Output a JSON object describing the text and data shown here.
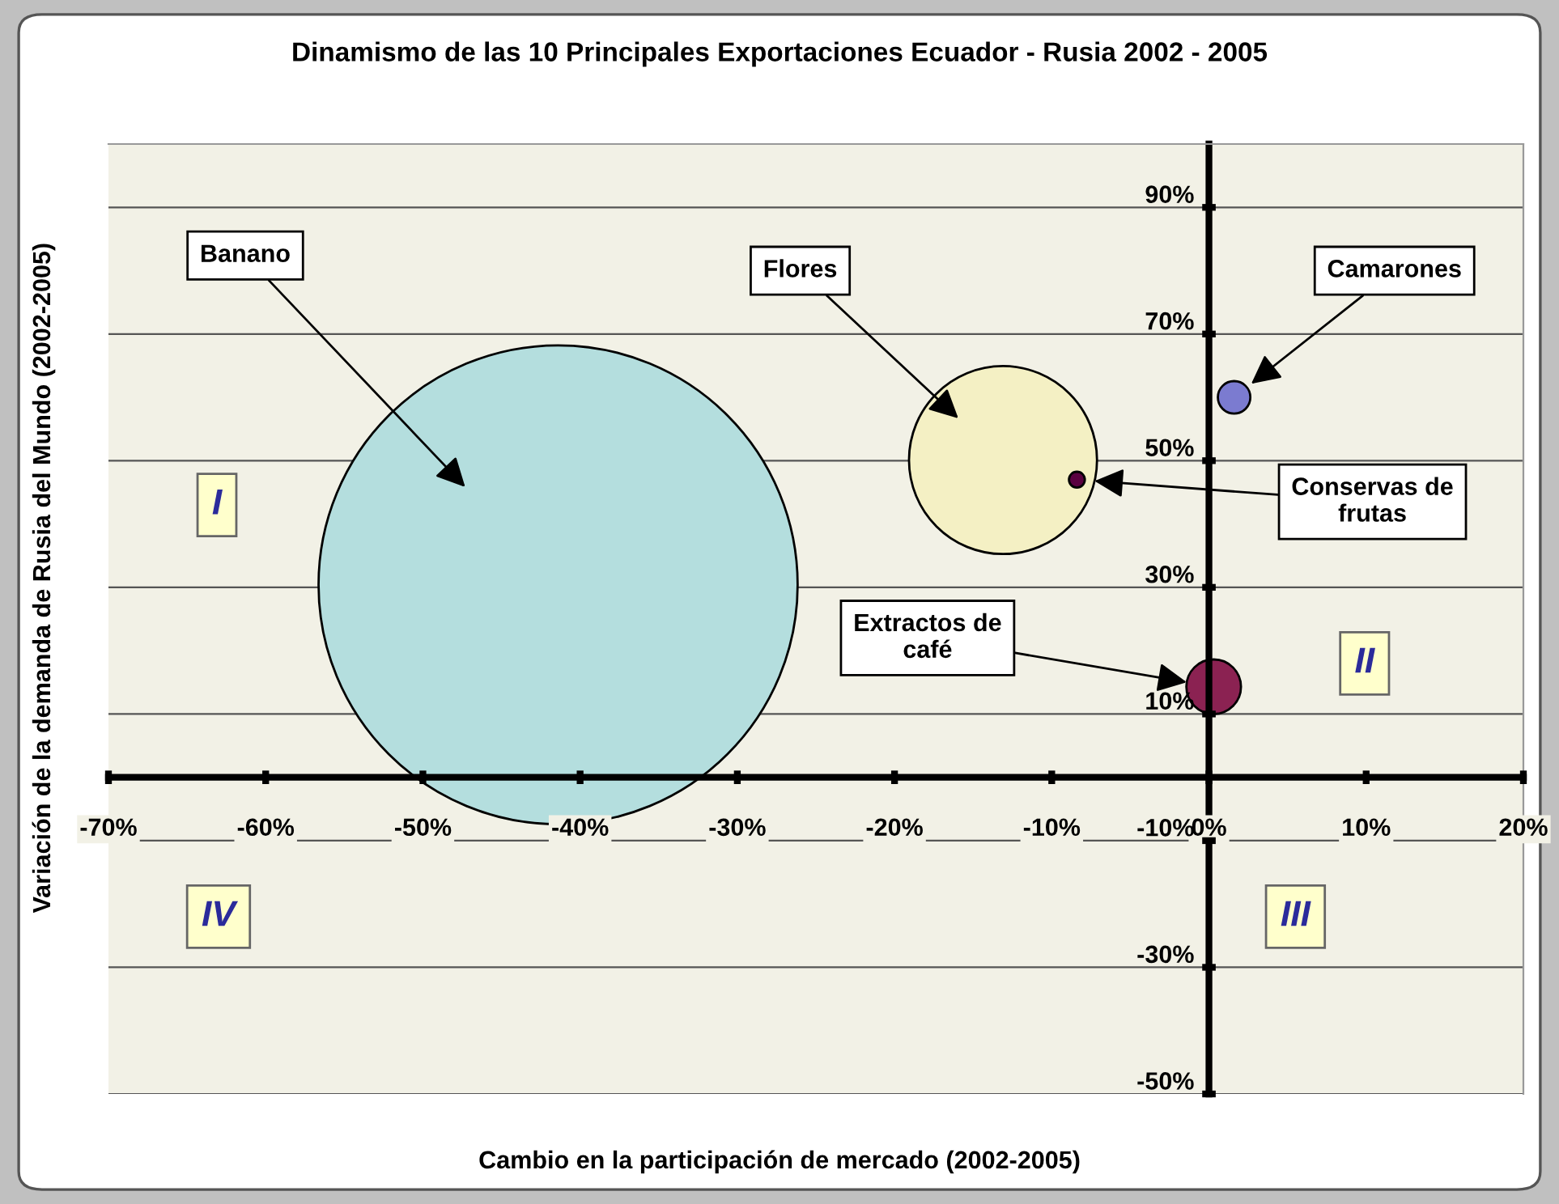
{
  "chart_data": {
    "type": "bubble",
    "title": "Dinamismo de las 10 Principales Exportaciones Ecuador - Rusia 2002 - 2005",
    "xlabel": "Cambio en la participación de mercado (2002-2005)",
    "ylabel": "Variación de la demanda de Rusia del Mundo (2002-2005)",
    "series": [
      {
        "name": "Banano",
        "color": "#b4dede",
        "x": [
          -41.4
        ],
        "values": [
          30.4
        ],
        "sizes": [
          1
        ]
      },
      {
        "name": "Flores",
        "color": "#f4f0c4",
        "x": [
          -13.1
        ],
        "values": [
          50.1
        ],
        "sizes": [
          0.154
        ]
      },
      {
        "name": "Camarones",
        "color": "#7b7bd0",
        "x": [
          1.6
        ],
        "values": [
          60
        ],
        "sizes": [
          0.0046
        ]
      },
      {
        "name": "Conservas de\nfrutas",
        "color": "#5a0040",
        "x": [
          -8.4
        ],
        "values": [
          47
        ],
        "sizes": [
          0.0011
        ]
      },
      {
        "name": "Extractos de\ncafé",
        "color": "#8b2252",
        "x": [
          0.3
        ],
        "values": [
          14.3
        ],
        "sizes": [
          0.013
        ]
      }
    ],
    "annotations": [
      "I",
      "II",
      "III",
      "IV"
    ],
    "xlim": [
      -70,
      20
    ],
    "xticks": [
      {
        "value": -70,
        "label": "-70%"
      },
      {
        "value": -60,
        "label": "-60%"
      },
      {
        "value": -50,
        "label": "-50%"
      },
      {
        "value": -40,
        "label": "-40%"
      },
      {
        "value": -30,
        "label": "-30%"
      },
      {
        "value": -20,
        "label": "-20%"
      },
      {
        "value": -10,
        "label": "-10%"
      },
      {
        "value": 0,
        "label": "0%"
      },
      {
        "value": 10,
        "label": "10%"
      },
      {
        "value": 20,
        "label": "20%"
      }
    ],
    "ylim": [
      -50,
      100
    ],
    "yticks": [
      {
        "value": -50,
        "label": "-50%"
      },
      {
        "value": -30,
        "label": "-30%"
      },
      {
        "value": -10,
        "label": "-10%"
      },
      {
        "value": 10,
        "label": "10%"
      },
      {
        "value": 30,
        "label": "30%"
      },
      {
        "value": 50,
        "label": "50%"
      },
      {
        "value": 70,
        "label": "70%"
      },
      {
        "value": 90,
        "label": "90%"
      }
    ],
    "grid": "y",
    "legend": false
  }
}
